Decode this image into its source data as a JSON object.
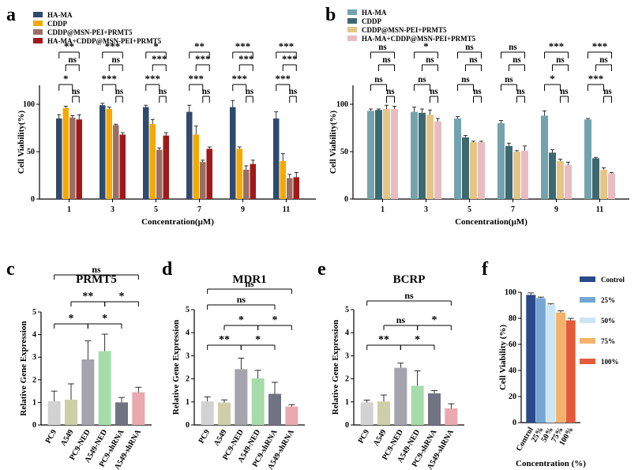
{
  "figure": {
    "panels": [
      {
        "key": "a"
      },
      {
        "key": "b"
      },
      {
        "key": "c"
      },
      {
        "key": "d"
      },
      {
        "key": "e"
      },
      {
        "key": "f"
      }
    ]
  },
  "chart_data": [
    {
      "panel": "a",
      "type": "bar",
      "xlabel": "Concentration(μM)",
      "ylabel": "Cell Viability(%)",
      "ylim": [
        0,
        120
      ],
      "yticks": [
        0,
        50,
        100
      ],
      "categories": [
        "1",
        "3",
        "5",
        "7",
        "9",
        "11"
      ],
      "legend_position": "top-left",
      "colors": [
        "#2e4a6e",
        "#f5a800",
        "#9a6e66",
        "#a01818"
      ],
      "series": [
        {
          "name": "HA-MA",
          "values": [
            85,
            99,
            97,
            92,
            97,
            85
          ],
          "errors": [
            4,
            2,
            2,
            7,
            7,
            7
          ]
        },
        {
          "name": "CDDP",
          "values": [
            96,
            95,
            79,
            68,
            53,
            40
          ],
          "errors": [
            2,
            2,
            5,
            9,
            2,
            8
          ]
        },
        {
          "name": "CDDP@MSN-PEI+PRMT5",
          "values": [
            86,
            78,
            52,
            39,
            31,
            22
          ],
          "errors": [
            2,
            1,
            2,
            2,
            4,
            4
          ]
        },
        {
          "name": "HA-MA+CDDP@MSN-PEI+PRMT5",
          "values": [
            84,
            68,
            67,
            53,
            37,
            23
          ],
          "errors": [
            5,
            2,
            3,
            2,
            4,
            5
          ]
        }
      ],
      "annotations": [
        {
          "group": 0,
          "rows": [
            [
              "**",
              0,
              3
            ],
            [
              "ns",
              1,
              3
            ],
            [
              "*",
              0,
              2
            ],
            [
              "ns",
              2,
              3
            ]
          ]
        },
        {
          "group": 1,
          "rows": [
            [
              "***",
              0,
              3
            ],
            [
              "ns",
              1,
              3
            ],
            [
              "***",
              0,
              2
            ],
            [
              "ns",
              2,
              3
            ]
          ]
        },
        {
          "group": 2,
          "rows": [
            [
              "*",
              0,
              3
            ],
            [
              "***",
              1,
              3
            ],
            [
              "***",
              0,
              2
            ],
            [
              "ns",
              2,
              3
            ]
          ]
        },
        {
          "group": 3,
          "rows": [
            [
              "**",
              0,
              3
            ],
            [
              "***",
              1,
              3
            ],
            [
              "***",
              0,
              2
            ],
            [
              "ns",
              2,
              3
            ]
          ]
        },
        {
          "group": 4,
          "rows": [
            [
              "***",
              0,
              3
            ],
            [
              "***",
              1,
              3
            ],
            [
              "***",
              0,
              2
            ],
            [
              "ns",
              2,
              3
            ]
          ]
        },
        {
          "group": 5,
          "rows": [
            [
              "***",
              0,
              3
            ],
            [
              "***",
              1,
              3
            ],
            [
              "***",
              0,
              2
            ],
            [
              "ns",
              2,
              3
            ]
          ]
        }
      ]
    },
    {
      "panel": "b",
      "type": "bar",
      "xlabel": "Concentration(μM)",
      "ylabel": "Cell Viability(%)",
      "ylim": [
        0,
        120
      ],
      "yticks": [
        0,
        50,
        100
      ],
      "categories": [
        "1",
        "3",
        "5",
        "7",
        "9",
        "11"
      ],
      "legend_position": "top-left",
      "colors": [
        "#74a3ad",
        "#3c6870",
        "#e4c587",
        "#e9bcc3"
      ],
      "series": [
        {
          "name": "HA-MA",
          "values": [
            93,
            92,
            85,
            80,
            88,
            84
          ],
          "errors": [
            2,
            5,
            2,
            3,
            5,
            1
          ]
        },
        {
          "name": "CDDP",
          "values": [
            94,
            91,
            65,
            56,
            49,
            43
          ],
          "errors": [
            1,
            4,
            2,
            3,
            3,
            1
          ]
        },
        {
          "name": "CDDP@MSN-PEI+PRMT5",
          "values": [
            95,
            89,
            60,
            50,
            40,
            31
          ],
          "errors": [
            4,
            5,
            1,
            1,
            2,
            2
          ]
        },
        {
          "name": "HA-MA+CDDP@MSN-PEI+PRMT5",
          "values": [
            95,
            82,
            60,
            51,
            36,
            27
          ],
          "errors": [
            3,
            3,
            1,
            5,
            3,
            1
          ]
        }
      ],
      "annotations": [
        {
          "group": 0,
          "rows": [
            [
              "ns",
              0,
              3
            ],
            [
              "ns",
              1,
              3
            ],
            [
              "ns",
              0,
              2
            ],
            [
              "ns",
              2,
              3
            ]
          ]
        },
        {
          "group": 1,
          "rows": [
            [
              "*",
              0,
              3
            ],
            [
              "ns",
              1,
              3
            ],
            [
              "ns",
              0,
              2
            ],
            [
              "ns",
              2,
              3
            ]
          ]
        },
        {
          "group": 2,
          "rows": [
            [
              "ns",
              0,
              3
            ],
            [
              "ns",
              1,
              3
            ],
            [
              "ns",
              0,
              2
            ],
            [
              "ns",
              2,
              3
            ]
          ]
        },
        {
          "group": 3,
          "rows": [
            [
              "ns",
              0,
              3
            ],
            [
              "ns",
              1,
              3
            ],
            [
              "ns",
              0,
              2
            ],
            [
              "ns",
              2,
              3
            ]
          ]
        },
        {
          "group": 4,
          "rows": [
            [
              "***",
              0,
              3
            ],
            [
              "ns",
              1,
              3
            ],
            [
              "*",
              0,
              2
            ],
            [
              "ns",
              2,
              3
            ]
          ]
        },
        {
          "group": 5,
          "rows": [
            [
              "***",
              0,
              3
            ],
            [
              "ns",
              1,
              3
            ],
            [
              "***",
              0,
              2
            ],
            [
              "ns",
              2,
              3
            ]
          ]
        }
      ]
    },
    {
      "panel": "c",
      "type": "bar",
      "title": "PRMT5",
      "ylabel": "Relative Gene Expression",
      "ylim": [
        0,
        5
      ],
      "yticks": [
        0,
        1,
        2,
        3,
        4,
        5
      ],
      "categories": [
        "PC9",
        "A549",
        "PC9-NED",
        "A549-NED",
        "PC9-shRNA",
        "A549-shRNA"
      ],
      "colors": [
        "#d2d2d2",
        "#cdcfa9",
        "#a4a3ae",
        "#a6dca9",
        "#717282",
        "#e9a9ae"
      ],
      "values": [
        1.05,
        1.12,
        2.9,
        3.27,
        1.0,
        1.45
      ],
      "errors": [
        0.45,
        0.7,
        0.82,
        0.75,
        0.22,
        0.22
      ],
      "annotations": [
        [
          "*",
          0,
          2
        ],
        [
          "*",
          2,
          4
        ],
        [
          "**",
          1,
          3
        ],
        [
          "*",
          3,
          5
        ],
        [
          "ns",
          0,
          5
        ]
      ]
    },
    {
      "panel": "d",
      "type": "bar",
      "title": "MDR1",
      "ylabel": "Relative Gene Expression",
      "ylim": [
        0,
        5
      ],
      "yticks": [
        0,
        1,
        2,
        3,
        4,
        5
      ],
      "categories": [
        "PC9",
        "A549",
        "PC9-NED",
        "A549-NED",
        "PC9-shRNA",
        "A549-shRNA"
      ],
      "colors": [
        "#d2d2d2",
        "#cdcfa9",
        "#a4a3ae",
        "#a6dca9",
        "#717282",
        "#e9a9ae"
      ],
      "values": [
        1.02,
        0.97,
        2.42,
        2.02,
        1.35,
        0.8
      ],
      "errors": [
        0.2,
        0.12,
        0.48,
        0.35,
        0.5,
        0.08
      ],
      "annotations": [
        [
          "**",
          0,
          2
        ],
        [
          "*",
          2,
          4
        ],
        [
          "*",
          1,
          3
        ],
        [
          "*",
          3,
          5
        ],
        [
          "ns",
          0,
          4
        ],
        [
          "ns",
          0,
          5
        ]
      ]
    },
    {
      "panel": "e",
      "type": "bar",
      "title": "BCRP",
      "ylabel": "Relative Gene Expression",
      "ylim": [
        0,
        5
      ],
      "yticks": [
        0,
        1,
        2,
        3,
        4,
        5
      ],
      "categories": [
        "PC9",
        "A549",
        "PC9-NED",
        "A549-NED",
        "PC9-shRNA",
        "A549-shRNA"
      ],
      "colors": [
        "#d2d2d2",
        "#cdcfa9",
        "#a4a3ae",
        "#a6dca9",
        "#717282",
        "#e9a9ae"
      ],
      "values": [
        0.98,
        1.02,
        2.48,
        1.7,
        1.37,
        0.72
      ],
      "errors": [
        0.1,
        0.28,
        0.2,
        0.65,
        0.12,
        0.2
      ],
      "annotations": [
        [
          "**",
          0,
          2
        ],
        [
          "*",
          2,
          4
        ],
        [
          "ns",
          1,
          3
        ],
        [
          "*",
          3,
          5
        ],
        [
          "ns",
          0,
          5
        ]
      ]
    },
    {
      "panel": "f",
      "type": "bar",
      "xlabel": "Concentration (%)",
      "ylabel": "Cell Viability (%)",
      "ylim": [
        0,
        100
      ],
      "yticks": [
        0,
        20,
        40,
        60,
        80,
        100
      ],
      "categories": [
        "Control",
        "25%",
        "50%",
        "75%",
        "100%"
      ],
      "legend": [
        "Control",
        "25%",
        "50%",
        "75%",
        "100%"
      ],
      "legend_position": "right",
      "colors": [
        "#2a4a8c",
        "#76a6d4",
        "#cbe6f2",
        "#f4b26a",
        "#e35b3b"
      ],
      "values": [
        98,
        95.5,
        90.5,
        84.5,
        78.5
      ],
      "errors": [
        1.5,
        0.8,
        0.6,
        1.2,
        1.5
      ]
    }
  ]
}
